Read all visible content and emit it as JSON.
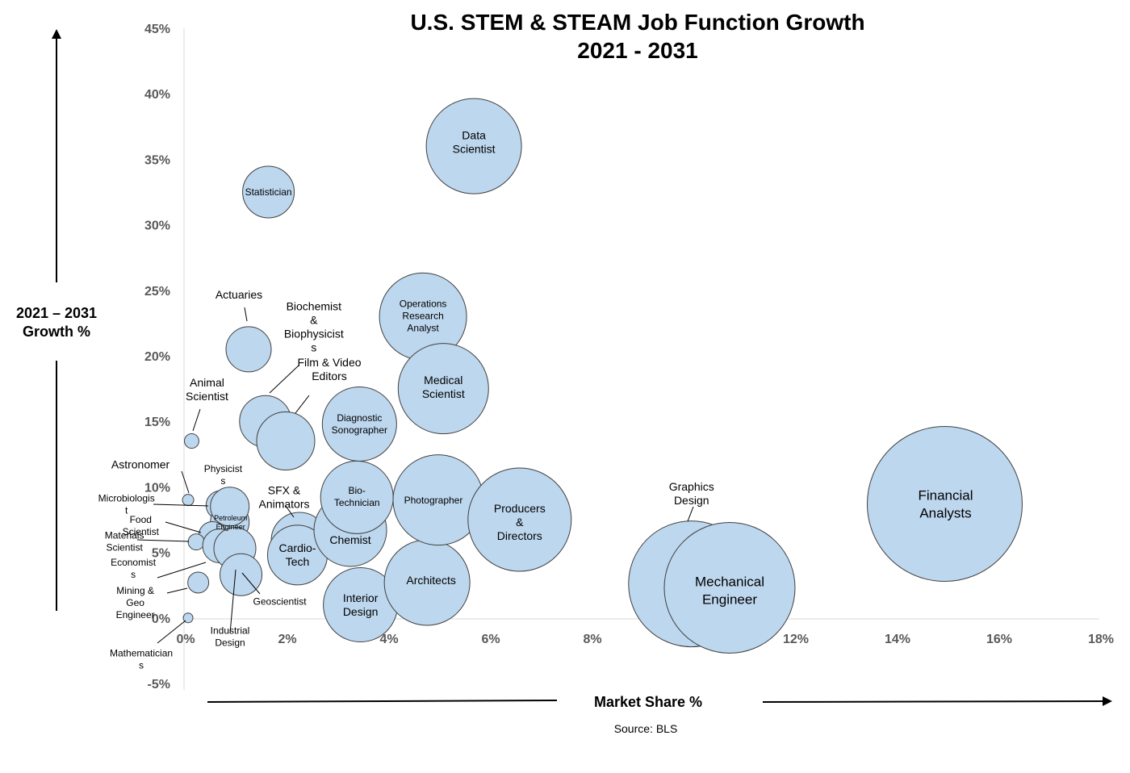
{
  "chart_data": {
    "type": "bubble",
    "title": [
      "U.S. STEM & STEAM Job Function Growth",
      "2021 - 2031"
    ],
    "xlabel": "Market Share %",
    "ylabel": [
      "2021 – 2031",
      "Growth %"
    ],
    "source": "Source: BLS",
    "xlim": [
      0,
      18
    ],
    "ylim": [
      -5,
      45
    ],
    "x_ticks": [
      "0%",
      "2%",
      "4%",
      "6%",
      "8%",
      "10%",
      "12%",
      "14%",
      "16%",
      "18%"
    ],
    "y_ticks": [
      "45%",
      "40%",
      "35%",
      "30%",
      "25%",
      "20%",
      "15%",
      "10%",
      "5%",
      "0%",
      "-5%"
    ],
    "grid": false,
    "bubble_color": "#bdd7ee",
    "points": [
      {
        "name": "Data Scientist",
        "label": [
          "Data",
          "Scientist"
        ],
        "x": 5.7,
        "y": 36,
        "size": 59
      },
      {
        "name": "Statistician",
        "label": [
          "Statistician"
        ],
        "x": 1.66,
        "y": 32.5,
        "size": 32
      },
      {
        "name": "Actuaries",
        "label": [
          "Actuaries"
        ],
        "x": 1.27,
        "y": 20.5,
        "size": 28
      },
      {
        "name": "Operations Research Analyst",
        "label": [
          "Operations",
          "Research",
          "Analyst"
        ],
        "x": 4.7,
        "y": 23,
        "size": 54
      },
      {
        "name": "Medical Scientist",
        "label": [
          "Medical",
          "Scientist"
        ],
        "x": 5.1,
        "y": 17.5,
        "size": 56
      },
      {
        "name": "Biochemist & Biophysicists",
        "label": [
          "Biochemist",
          "&",
          "Biophysicist",
          "s"
        ],
        "x": 1.6,
        "y": 15,
        "size": 32
      },
      {
        "name": "Film & Video Editors",
        "label": [
          "Film & Video",
          "Editors"
        ],
        "x": 2.0,
        "y": 13.5,
        "size": 36
      },
      {
        "name": "Diagnostic Sonographer",
        "label": [
          "Diagnostic",
          "Sonographer"
        ],
        "x": 3.45,
        "y": 14.8,
        "size": 46
      },
      {
        "name": "Animal Scientist",
        "label": [
          "Animal",
          "Scientist"
        ],
        "x": 0.15,
        "y": 13.5,
        "size": 9
      },
      {
        "name": "Astronomer",
        "label": [
          "Astronomer"
        ],
        "x": 0.08,
        "y": 9,
        "size": 7
      },
      {
        "name": "Physicists",
        "label": [
          "Physicist",
          "s"
        ],
        "x": 0.72,
        "y": 8.6,
        "size": 18
      },
      {
        "name": "Petroleum Engineer",
        "label": [
          "Petroleum",
          "Engineer"
        ],
        "x": 0.9,
        "y": 7.3,
        "size": 24
      },
      {
        "name": "Microbiologists",
        "label": [
          "Microbiologis",
          "t"
        ],
        "x": 0.9,
        "y": 8.5,
        "size": 24
      },
      {
        "name": "Food Scientist",
        "label": [
          "Food",
          "Scientist"
        ],
        "x": 0.56,
        "y": 6.3,
        "size": 17
      },
      {
        "name": "Materials Scientists",
        "label": [
          "Materials",
          "Scientist"
        ],
        "x": 0.24,
        "y": 5.8,
        "size": 10
      },
      {
        "name": "Economists",
        "label": [
          "Economist",
          "s"
        ],
        "x": 0.7,
        "y": 5.5,
        "size": 21
      },
      {
        "name": "Industrial Design",
        "label": [
          "Industrial",
          "Design"
        ],
        "x": 1.0,
        "y": 5.3,
        "size": 26
      },
      {
        "name": "Geoscientist",
        "label": [
          "Geoscientist"
        ],
        "x": 1.12,
        "y": 3.3,
        "size": 26
      },
      {
        "name": "Mining & Geo Engineers",
        "label": [
          "Mining &",
          "Geo",
          "Engineer"
        ],
        "x": 0.28,
        "y": 2.7,
        "size": 13
      },
      {
        "name": "Mathematicians",
        "label": [
          "Mathematician",
          "s"
        ],
        "x": 0.08,
        "y": 0,
        "size": 6
      },
      {
        "name": "SFX & Animators",
        "label": [
          "SFX &",
          "Animators"
        ],
        "x": 2.27,
        "y": 5.9,
        "size": 35
      },
      {
        "name": "Cardio-Tech",
        "label": [
          "Cardio-",
          "Tech"
        ],
        "x": 2.23,
        "y": 4.8,
        "size": 37
      },
      {
        "name": "Chemist",
        "label": [
          "Chemist"
        ],
        "x": 3.27,
        "y": 6.7,
        "size": 45
      },
      {
        "name": "Bio-Technician",
        "label": [
          "Bio-",
          "Technician"
        ],
        "x": 3.4,
        "y": 9.2,
        "size": 45
      },
      {
        "name": "Interior Design",
        "label": [
          "Interior",
          "Design"
        ],
        "x": 3.47,
        "y": 1.0,
        "size": 46
      },
      {
        "name": "Architects",
        "label": [
          "Architects"
        ],
        "x": 4.78,
        "y": 2.7,
        "size": 53
      },
      {
        "name": "Photographer",
        "label": [
          "Photographer"
        ],
        "x": 5.0,
        "y": 9.0,
        "size": 56
      },
      {
        "name": "Producers & Directors",
        "label": [
          "Producers",
          "&",
          "Directors"
        ],
        "x": 6.6,
        "y": 7.5,
        "size": 64
      },
      {
        "name": "Graphics Design",
        "label": [
          "Graphics",
          "Design"
        ],
        "x": 9.98,
        "y": 2.6,
        "size": 78
      },
      {
        "name": "Mechanical Engineer",
        "label": [
          "Mechanical",
          "Engineer"
        ],
        "x": 10.73,
        "y": 2.3,
        "size": 81
      },
      {
        "name": "Financial Analysts",
        "label": [
          "Financial",
          "Analysts"
        ],
        "x": 14.96,
        "y": 8.7,
        "size": 96
      }
    ]
  }
}
